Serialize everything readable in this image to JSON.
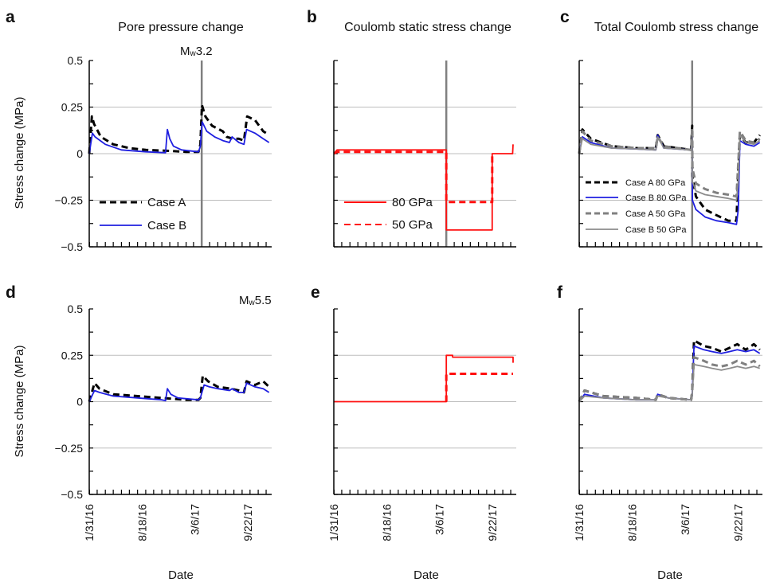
{
  "figure": {
    "ylabel": "Stress change (MPa)",
    "xlabel": "Date",
    "y_ticks": [
      "0.5",
      "0.25",
      "0",
      "−0.25",
      "−0.5"
    ],
    "x_ticks": [
      "1/31/16",
      "8/18/16",
      "3/6/17",
      "9/22/17"
    ],
    "colors": {
      "case_a": "#000000",
      "case_b": "#1f1fe0",
      "static": "#ff1010",
      "case_a_50": "#808080",
      "case_b_50": "#8c8c8c",
      "event_line": "#808080",
      "grid": "#bdbdbd"
    }
  },
  "panels": {
    "a": {
      "label": "a",
      "title": "Pore pressure change",
      "event_prefix": "M",
      "event_sub": "w",
      "event_value": "3.2",
      "legend": [
        "Case A",
        "Case B"
      ]
    },
    "b": {
      "label": "b",
      "title": "Coulomb static stress change",
      "legend": [
        "80 GPa",
        "50 GPa"
      ]
    },
    "c": {
      "label": "c",
      "title": "Total Coulomb stress change",
      "legend": [
        "Case A 80 GPa",
        "Case B 80 GPa",
        "Case A 50 GPa",
        "Case B 50 GPa"
      ]
    },
    "d": {
      "label": "d",
      "event_prefix": "M",
      "event_sub": "w",
      "event_value": "5.5"
    },
    "e": {
      "label": "e"
    },
    "f": {
      "label": "f"
    }
  },
  "chart_data": [
    {
      "panel": "a",
      "type": "line",
      "x_type": "date",
      "xlim": [
        "2016-01-31",
        "2017-12-22"
      ],
      "ylim": [
        -0.5,
        0.5
      ],
      "grid": true,
      "event_date": "2017-04-01",
      "series": [
        {
          "name": "Case A",
          "style": "dashed",
          "color": "#000000",
          "x": [
            "2016-01-31",
            "2016-02-10",
            "2016-02-18",
            "2016-03-15",
            "2016-05-01",
            "2016-07-01",
            "2016-09-01",
            "2016-12-01",
            "2017-02-01",
            "2017-03-20",
            "2017-03-27",
            "2017-04-02",
            "2017-04-15",
            "2017-05-10",
            "2017-06-20",
            "2017-07-05",
            "2017-07-28",
            "2017-08-20",
            "2017-09-08",
            "2017-09-20",
            "2017-10-20",
            "2017-11-20",
            "2017-12-12"
          ],
          "y": [
            0.0,
            0.2,
            0.16,
            0.09,
            0.05,
            0.03,
            0.02,
            0.015,
            0.01,
            0.01,
            0.05,
            0.26,
            0.2,
            0.15,
            0.12,
            0.09,
            0.08,
            0.08,
            0.07,
            0.2,
            0.18,
            0.12,
            0.1
          ]
        },
        {
          "name": "Case B",
          "style": "solid",
          "color": "#1f1fe0",
          "x": [
            "2016-01-31",
            "2016-02-12",
            "2016-02-22",
            "2016-04-01",
            "2016-06-01",
            "2016-09-01",
            "2016-11-15",
            "2016-11-22",
            "2016-12-01",
            "2016-12-15",
            "2017-01-15",
            "2017-03-20",
            "2017-03-27",
            "2017-04-03",
            "2017-04-20",
            "2017-05-20",
            "2017-06-20",
            "2017-07-15",
            "2017-07-25",
            "2017-08-20",
            "2017-09-08",
            "2017-09-18",
            "2017-10-20",
            "2017-11-20",
            "2017-12-12"
          ],
          "y": [
            0.0,
            0.11,
            0.09,
            0.05,
            0.02,
            0.01,
            0.005,
            0.13,
            0.08,
            0.04,
            0.02,
            0.01,
            0.04,
            0.17,
            0.12,
            0.09,
            0.07,
            0.06,
            0.09,
            0.06,
            0.05,
            0.13,
            0.11,
            0.08,
            0.06
          ]
        }
      ]
    },
    {
      "panel": "b",
      "type": "line",
      "x_type": "date",
      "xlim": [
        "2016-01-31",
        "2017-12-22"
      ],
      "ylim": [
        -0.5,
        0.5
      ],
      "grid": true,
      "event_date": "2017-04-01",
      "series": [
        {
          "name": "80 GPa",
          "style": "solid",
          "color": "#ff1010",
          "x": [
            "2016-01-31",
            "2016-02-12",
            "2017-04-01",
            "2017-04-01",
            "2017-09-22",
            "2017-09-22",
            "2017-12-08",
            "2017-12-10"
          ],
          "y": [
            0.0,
            0.02,
            0.02,
            -0.41,
            -0.41,
            0.0,
            0.0,
            0.05
          ]
        },
        {
          "name": "50 GPa",
          "style": "dashed",
          "color": "#ff1010",
          "x": [
            "2016-01-31",
            "2016-02-12",
            "2017-04-01",
            "2017-04-01",
            "2017-09-22",
            "2017-09-22"
          ],
          "y": [
            0.0,
            0.01,
            0.01,
            -0.26,
            -0.26,
            0.0
          ]
        }
      ]
    },
    {
      "panel": "c",
      "type": "line",
      "x_type": "date",
      "xlim": [
        "2016-01-31",
        "2017-12-22"
      ],
      "ylim": [
        -0.5,
        0.5
      ],
      "grid": true,
      "event_date": "2017-04-01",
      "series": [
        {
          "name": "Case A 80 GPa",
          "style": "dashed",
          "color": "#000000",
          "x": [
            "2016-01-31",
            "2016-02-12",
            "2016-03-15",
            "2016-06-01",
            "2016-09-01",
            "2016-11-15",
            "2016-11-22",
            "2016-12-15",
            "2017-03-28",
            "2017-04-01",
            "2017-04-02",
            "2017-04-15",
            "2017-05-20",
            "2017-07-01",
            "2017-08-15",
            "2017-09-15",
            "2017-09-22",
            "2017-09-28",
            "2017-10-20",
            "2017-11-20",
            "2017-12-12"
          ],
          "y": [
            0.0,
            0.13,
            0.08,
            0.04,
            0.03,
            0.03,
            0.1,
            0.04,
            0.02,
            0.15,
            -0.12,
            -0.23,
            -0.3,
            -0.33,
            -0.36,
            -0.36,
            -0.1,
            0.1,
            0.06,
            0.06,
            0.1
          ]
        },
        {
          "name": "Case B 80 GPa",
          "style": "solid",
          "color": "#1f1fe0",
          "x": [
            "2016-01-31",
            "2016-02-12",
            "2016-03-15",
            "2016-06-01",
            "2016-09-01",
            "2016-11-15",
            "2016-11-22",
            "2016-12-15",
            "2017-03-28",
            "2017-04-01",
            "2017-04-02",
            "2017-04-15",
            "2017-05-20",
            "2017-07-01",
            "2017-08-15",
            "2017-09-15",
            "2017-09-22",
            "2017-09-28",
            "2017-10-20",
            "2017-11-20",
            "2017-12-12"
          ],
          "y": [
            0.0,
            0.09,
            0.06,
            0.03,
            0.025,
            0.02,
            0.1,
            0.03,
            0.02,
            0.1,
            -0.25,
            -0.3,
            -0.34,
            -0.36,
            -0.37,
            -0.38,
            -0.3,
            0.07,
            0.05,
            0.04,
            0.06
          ]
        },
        {
          "name": "Case A 50 GPa",
          "style": "dashed",
          "color": "#808080",
          "x": [
            "2016-01-31",
            "2016-02-12",
            "2016-03-15",
            "2016-06-01",
            "2016-09-01",
            "2016-11-15",
            "2016-11-22",
            "2016-12-15",
            "2017-03-28",
            "2017-04-01",
            "2017-04-02",
            "2017-04-15",
            "2017-05-20",
            "2017-07-01",
            "2017-08-15",
            "2017-09-15",
            "2017-09-22",
            "2017-09-28",
            "2017-10-20",
            "2017-11-20",
            "2017-12-12"
          ],
          "y": [
            0.0,
            0.12,
            0.07,
            0.04,
            0.03,
            0.03,
            0.09,
            0.04,
            0.02,
            0.14,
            -0.08,
            -0.16,
            -0.19,
            -0.21,
            -0.22,
            -0.23,
            -0.05,
            0.12,
            0.07,
            0.06,
            0.08
          ]
        },
        {
          "name": "Case B 50 GPa",
          "style": "solid",
          "color": "#8c8c8c",
          "x": [
            "2016-01-31",
            "2016-02-12",
            "2016-03-15",
            "2016-06-01",
            "2016-09-01",
            "2016-11-15",
            "2016-11-22",
            "2016-12-15",
            "2017-03-28",
            "2017-04-01",
            "2017-04-02",
            "2017-04-15",
            "2017-05-20",
            "2017-07-01",
            "2017-08-15",
            "2017-09-15",
            "2017-09-22",
            "2017-09-28",
            "2017-10-20",
            "2017-11-20",
            "2017-12-12"
          ],
          "y": [
            0.0,
            0.08,
            0.05,
            0.03,
            0.025,
            0.02,
            0.09,
            0.03,
            0.02,
            0.1,
            -0.15,
            -0.2,
            -0.22,
            -0.23,
            -0.24,
            -0.25,
            -0.15,
            0.1,
            0.06,
            0.05,
            0.07
          ]
        }
      ]
    },
    {
      "panel": "d",
      "type": "line",
      "x_type": "date",
      "xlim": [
        "2016-01-31",
        "2017-12-22"
      ],
      "ylim": [
        -0.5,
        0.5
      ],
      "grid": true,
      "series": [
        {
          "name": "Case A",
          "style": "dashed",
          "color": "#000000",
          "x": [
            "2016-01-31",
            "2016-02-20",
            "2016-03-10",
            "2016-05-01",
            "2016-08-01",
            "2016-11-01",
            "2017-02-01",
            "2017-03-20",
            "2017-03-27",
            "2017-04-05",
            "2017-04-25",
            "2017-06-01",
            "2017-07-20",
            "2017-08-20",
            "2017-09-08",
            "2017-09-18",
            "2017-10-20",
            "2017-11-20",
            "2017-12-12"
          ],
          "y": [
            0.0,
            0.1,
            0.07,
            0.04,
            0.03,
            0.02,
            0.01,
            0.01,
            0.02,
            0.14,
            0.11,
            0.08,
            0.07,
            0.06,
            0.05,
            0.11,
            0.09,
            0.11,
            0.08
          ]
        },
        {
          "name": "Case B",
          "style": "solid",
          "color": "#1f1fe0",
          "x": [
            "2016-01-31",
            "2016-02-20",
            "2016-03-10",
            "2016-05-01",
            "2016-08-01",
            "2016-11-01",
            "2016-11-15",
            "2016-11-22",
            "2016-12-05",
            "2017-01-01",
            "2017-03-20",
            "2017-03-27",
            "2017-04-10",
            "2017-04-30",
            "2017-06-01",
            "2017-07-15",
            "2017-07-25",
            "2017-08-20",
            "2017-09-08",
            "2017-09-18",
            "2017-10-20",
            "2017-11-20",
            "2017-12-12"
          ],
          "y": [
            0.0,
            0.06,
            0.05,
            0.03,
            0.02,
            0.01,
            0.005,
            0.07,
            0.04,
            0.02,
            0.01,
            0.02,
            0.09,
            0.08,
            0.07,
            0.06,
            0.07,
            0.05,
            0.05,
            0.1,
            0.08,
            0.07,
            0.05
          ]
        }
      ]
    },
    {
      "panel": "e",
      "type": "line",
      "x_type": "date",
      "xlim": [
        "2016-01-31",
        "2017-12-22"
      ],
      "ylim": [
        -0.5,
        0.5
      ],
      "grid": true,
      "series": [
        {
          "name": "80 GPa",
          "style": "solid",
          "color": "#ff1010",
          "x": [
            "2016-01-31",
            "2017-04-01",
            "2017-04-01",
            "2017-04-25",
            "2017-04-25",
            "2017-12-10",
            "2017-12-10"
          ],
          "y": [
            0.0,
            0.0,
            0.25,
            0.25,
            0.24,
            0.24,
            0.21
          ]
        },
        {
          "name": "50 GPa",
          "style": "dashed",
          "color": "#ff1010",
          "x": [
            "2017-04-01",
            "2017-04-01",
            "2017-12-10"
          ],
          "y": [
            0.0,
            0.15,
            0.15
          ]
        }
      ]
    },
    {
      "panel": "f",
      "type": "line",
      "x_type": "date",
      "xlim": [
        "2016-01-31",
        "2017-12-22"
      ],
      "ylim": [
        -0.5,
        0.5
      ],
      "grid": true,
      "series": [
        {
          "name": "Case A 80 GPa",
          "style": "dashed",
          "color": "#000000",
          "x": [
            "2016-01-31",
            "2016-02-20",
            "2016-05-01",
            "2016-09-01",
            "2016-11-15",
            "2016-11-22",
            "2017-01-01",
            "2017-03-28",
            "2017-04-01",
            "2017-04-08",
            "2017-05-15",
            "2017-06-15",
            "2017-07-20",
            "2017-08-20",
            "2017-09-18",
            "2017-10-20",
            "2017-11-20",
            "2017-12-12"
          ],
          "y": [
            0.0,
            0.06,
            0.03,
            0.02,
            0.01,
            0.04,
            0.02,
            0.01,
            0.05,
            0.33,
            0.3,
            0.29,
            0.27,
            0.29,
            0.31,
            0.28,
            0.31,
            0.28
          ]
        },
        {
          "name": "Case B 80 GPa",
          "style": "solid",
          "color": "#1f1fe0",
          "x": [
            "2016-01-31",
            "2016-02-20",
            "2016-05-01",
            "2016-09-01",
            "2016-11-15",
            "2016-11-22",
            "2017-01-01",
            "2017-03-28",
            "2017-04-01",
            "2017-04-08",
            "2017-05-15",
            "2017-06-15",
            "2017-07-20",
            "2017-08-20",
            "2017-09-18",
            "2017-10-20",
            "2017-11-20",
            "2017-12-12"
          ],
          "y": [
            0.0,
            0.04,
            0.02,
            0.01,
            0.01,
            0.04,
            0.02,
            0.01,
            0.03,
            0.3,
            0.28,
            0.27,
            0.26,
            0.27,
            0.28,
            0.27,
            0.28,
            0.26
          ]
        },
        {
          "name": "Case A 50 GPa",
          "style": "dashed",
          "color": "#808080",
          "x": [
            "2016-01-31",
            "2016-02-20",
            "2016-05-01",
            "2016-09-01",
            "2016-11-15",
            "2016-11-22",
            "2017-01-01",
            "2017-03-28",
            "2017-04-01",
            "2017-04-08",
            "2017-05-15",
            "2017-06-15",
            "2017-07-20",
            "2017-08-20",
            "2017-09-18",
            "2017-10-20",
            "2017-11-20",
            "2017-12-12"
          ],
          "y": [
            0.0,
            0.06,
            0.03,
            0.02,
            0.01,
            0.04,
            0.02,
            0.01,
            0.05,
            0.24,
            0.22,
            0.2,
            0.19,
            0.2,
            0.22,
            0.2,
            0.22,
            0.19
          ]
        },
        {
          "name": "Case B 50 GPa",
          "style": "solid",
          "color": "#8c8c8c",
          "x": [
            "2016-01-31",
            "2016-02-20",
            "2016-05-01",
            "2016-09-01",
            "2016-11-15",
            "2016-11-22",
            "2017-01-01",
            "2017-03-28",
            "2017-04-01",
            "2017-04-08",
            "2017-05-15",
            "2017-06-15",
            "2017-07-20",
            "2017-08-20",
            "2017-09-18",
            "2017-10-20",
            "2017-11-20",
            "2017-12-12"
          ],
          "y": [
            0.0,
            0.03,
            0.02,
            0.01,
            0.01,
            0.03,
            0.02,
            0.01,
            0.03,
            0.2,
            0.19,
            0.18,
            0.17,
            0.18,
            0.19,
            0.18,
            0.19,
            0.18
          ]
        }
      ]
    }
  ]
}
